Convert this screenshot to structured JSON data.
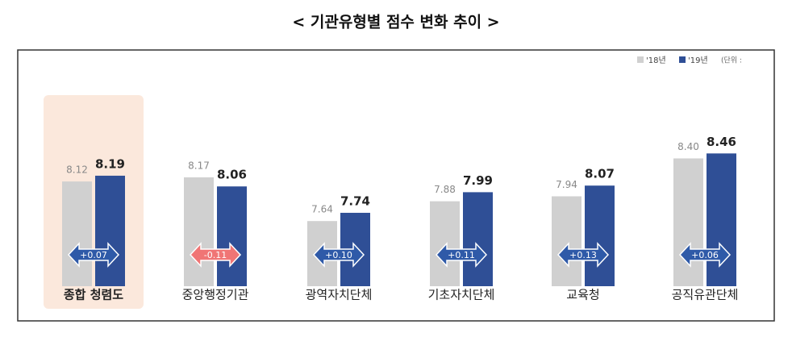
{
  "chart_data": {
    "type": "bar",
    "title": "< 기관유형별 점수 변화 추이 >",
    "categories": [
      "종합 청렴도",
      "중앙행정기관",
      "광역자치단체",
      "기초자치단체",
      "교육청",
      "공직유관단체"
    ],
    "series": [
      {
        "name": "'18년",
        "color": "#d0d0d0",
        "values": [
          8.12,
          8.17,
          7.64,
          7.88,
          7.94,
          8.4
        ],
        "value_labels": [
          "8.12",
          "8.17",
          "7.64",
          "7.88",
          "7.94",
          "8.40"
        ]
      },
      {
        "name": "'19년",
        "color": "#2f4f96",
        "values": [
          8.19,
          8.06,
          7.74,
          7.99,
          8.07,
          8.46
        ],
        "value_labels": [
          "8.19",
          "8.06",
          "7.74",
          "7.99",
          "8.07",
          "8.46"
        ]
      }
    ],
    "changes": {
      "values": [
        0.07,
        -0.11,
        0.1,
        0.11,
        0.13,
        0.06
      ],
      "value_labels": [
        "+0.07",
        "-0.11",
        "+0.10",
        "+0.11",
        "+0.13",
        "+0.06"
      ],
      "positive_color": "#2f5aa8",
      "negative_color": "#f07575"
    },
    "unit_note": "(단위 :",
    "highlight_index": 0,
    "ylim": [
      6.85,
      8.6
    ]
  }
}
